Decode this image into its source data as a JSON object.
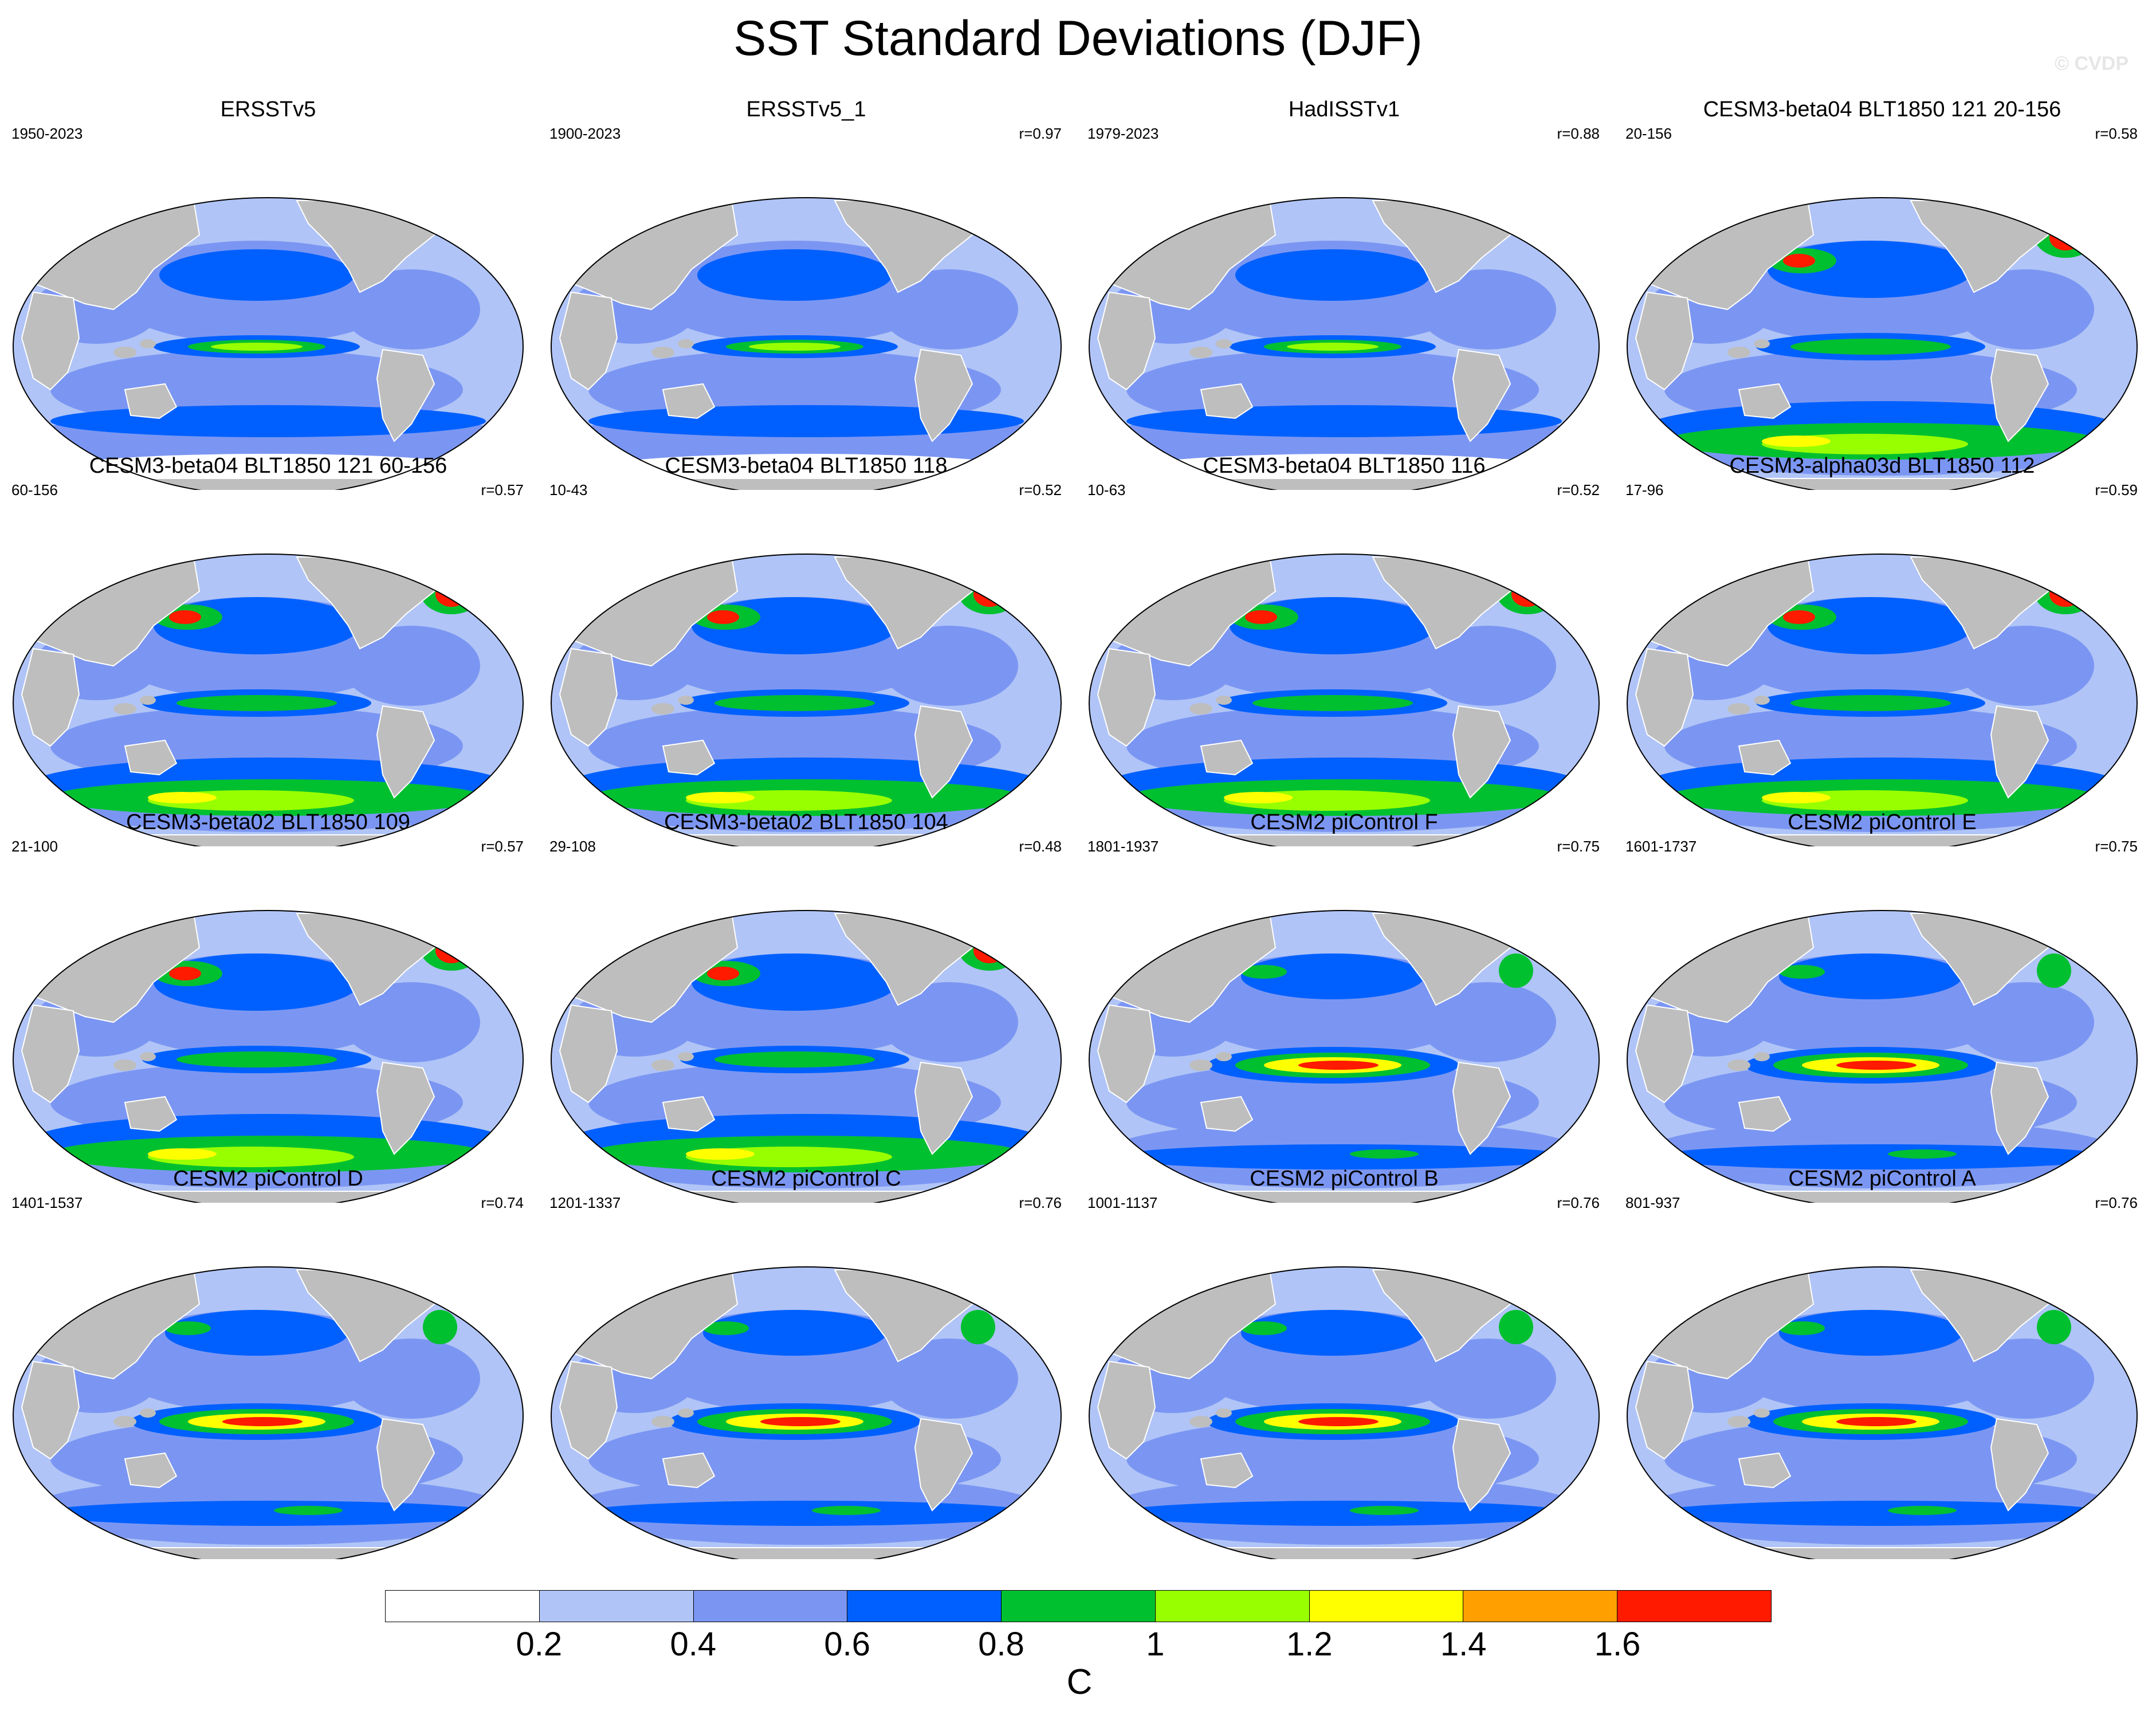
{
  "title": "SST Standard Deviations (DJF)",
  "watermark": "© CVDP",
  "colors": {
    "land": "#bebebe",
    "ocean_base": "#7b96f2",
    "ocean_low": "#b0c4f7",
    "white": "#ffffff"
  },
  "panels": [
    {
      "title": "ERSSTv5",
      "years": "1950-2023",
      "corr": "",
      "icon": "sst-map-ersstv5",
      "style": "obs"
    },
    {
      "title": "ERSSTv5_1",
      "years": "1900-2023",
      "corr": "r=0.97",
      "icon": "sst-map-ersstv5-1",
      "style": "obs"
    },
    {
      "title": "HadISSTv1",
      "years": "1979-2023",
      "corr": "r=0.88",
      "icon": "sst-map-hadisstv1",
      "style": "obs"
    },
    {
      "title": "CESM3-beta04 BLT1850 121 20-156",
      "years": "20-156",
      "corr": "r=0.58",
      "icon": "sst-map-cesm3-beta04-121-20-156",
      "style": "cesm3"
    },
    {
      "title": "CESM3-beta04 BLT1850 121 60-156",
      "years": "60-156",
      "corr": "r=0.57",
      "icon": "sst-map-cesm3-beta04-121-60-156",
      "style": "cesm3"
    },
    {
      "title": "CESM3-beta04 BLT1850 118",
      "years": "10-43",
      "corr": "r=0.52",
      "icon": "sst-map-cesm3-beta04-118",
      "style": "cesm3"
    },
    {
      "title": "CESM3-beta04 BLT1850 116",
      "years": "10-63",
      "corr": "r=0.52",
      "icon": "sst-map-cesm3-beta04-116",
      "style": "cesm3"
    },
    {
      "title": "CESM3-alpha03d BLT1850 112",
      "years": "17-96",
      "corr": "r=0.59",
      "icon": "sst-map-cesm3-alpha03d-112",
      "style": "cesm3"
    },
    {
      "title": "CESM3-beta02 BLT1850 109",
      "years": "21-100",
      "corr": "r=0.57",
      "icon": "sst-map-cesm3-beta02-109",
      "style": "cesm3"
    },
    {
      "title": "CESM3-beta02 BLT1850 104",
      "years": "29-108",
      "corr": "r=0.48",
      "icon": "sst-map-cesm3-beta02-104",
      "style": "cesm3"
    },
    {
      "title": "CESM2 piControl F",
      "years": "1801-1937",
      "corr": "r=0.75",
      "icon": "sst-map-cesm2-picontrol-f",
      "style": "cesm2"
    },
    {
      "title": "CESM2 piControl E",
      "years": "1601-1737",
      "corr": "r=0.75",
      "icon": "sst-map-cesm2-picontrol-e",
      "style": "cesm2"
    },
    {
      "title": "CESM2 piControl D",
      "years": "1401-1537",
      "corr": "r=0.74",
      "icon": "sst-map-cesm2-picontrol-d",
      "style": "cesm2"
    },
    {
      "title": "CESM2 piControl C",
      "years": "1201-1337",
      "corr": "r=0.76",
      "icon": "sst-map-cesm2-picontrol-c",
      "style": "cesm2"
    },
    {
      "title": "CESM2 piControl B",
      "years": "1001-1137",
      "corr": "r=0.76",
      "icon": "sst-map-cesm2-picontrol-b",
      "style": "cesm2"
    },
    {
      "title": "CESM2 piControl A",
      "years": "801-937",
      "corr": "r=0.76",
      "icon": "sst-map-cesm2-picontrol-a",
      "style": "cesm2"
    }
  ],
  "colorbar": {
    "colors": [
      "#ffffff",
      "#b0c4f7",
      "#7b96f2",
      "#0060ff",
      "#00c030",
      "#98ff00",
      "#ffff00",
      "#ffa000",
      "#ff1a00"
    ],
    "labels": [
      "0.2",
      "0.4",
      "0.6",
      "0.8",
      "1",
      "1.2",
      "1.4",
      "1.6"
    ],
    "unit": "C"
  }
}
